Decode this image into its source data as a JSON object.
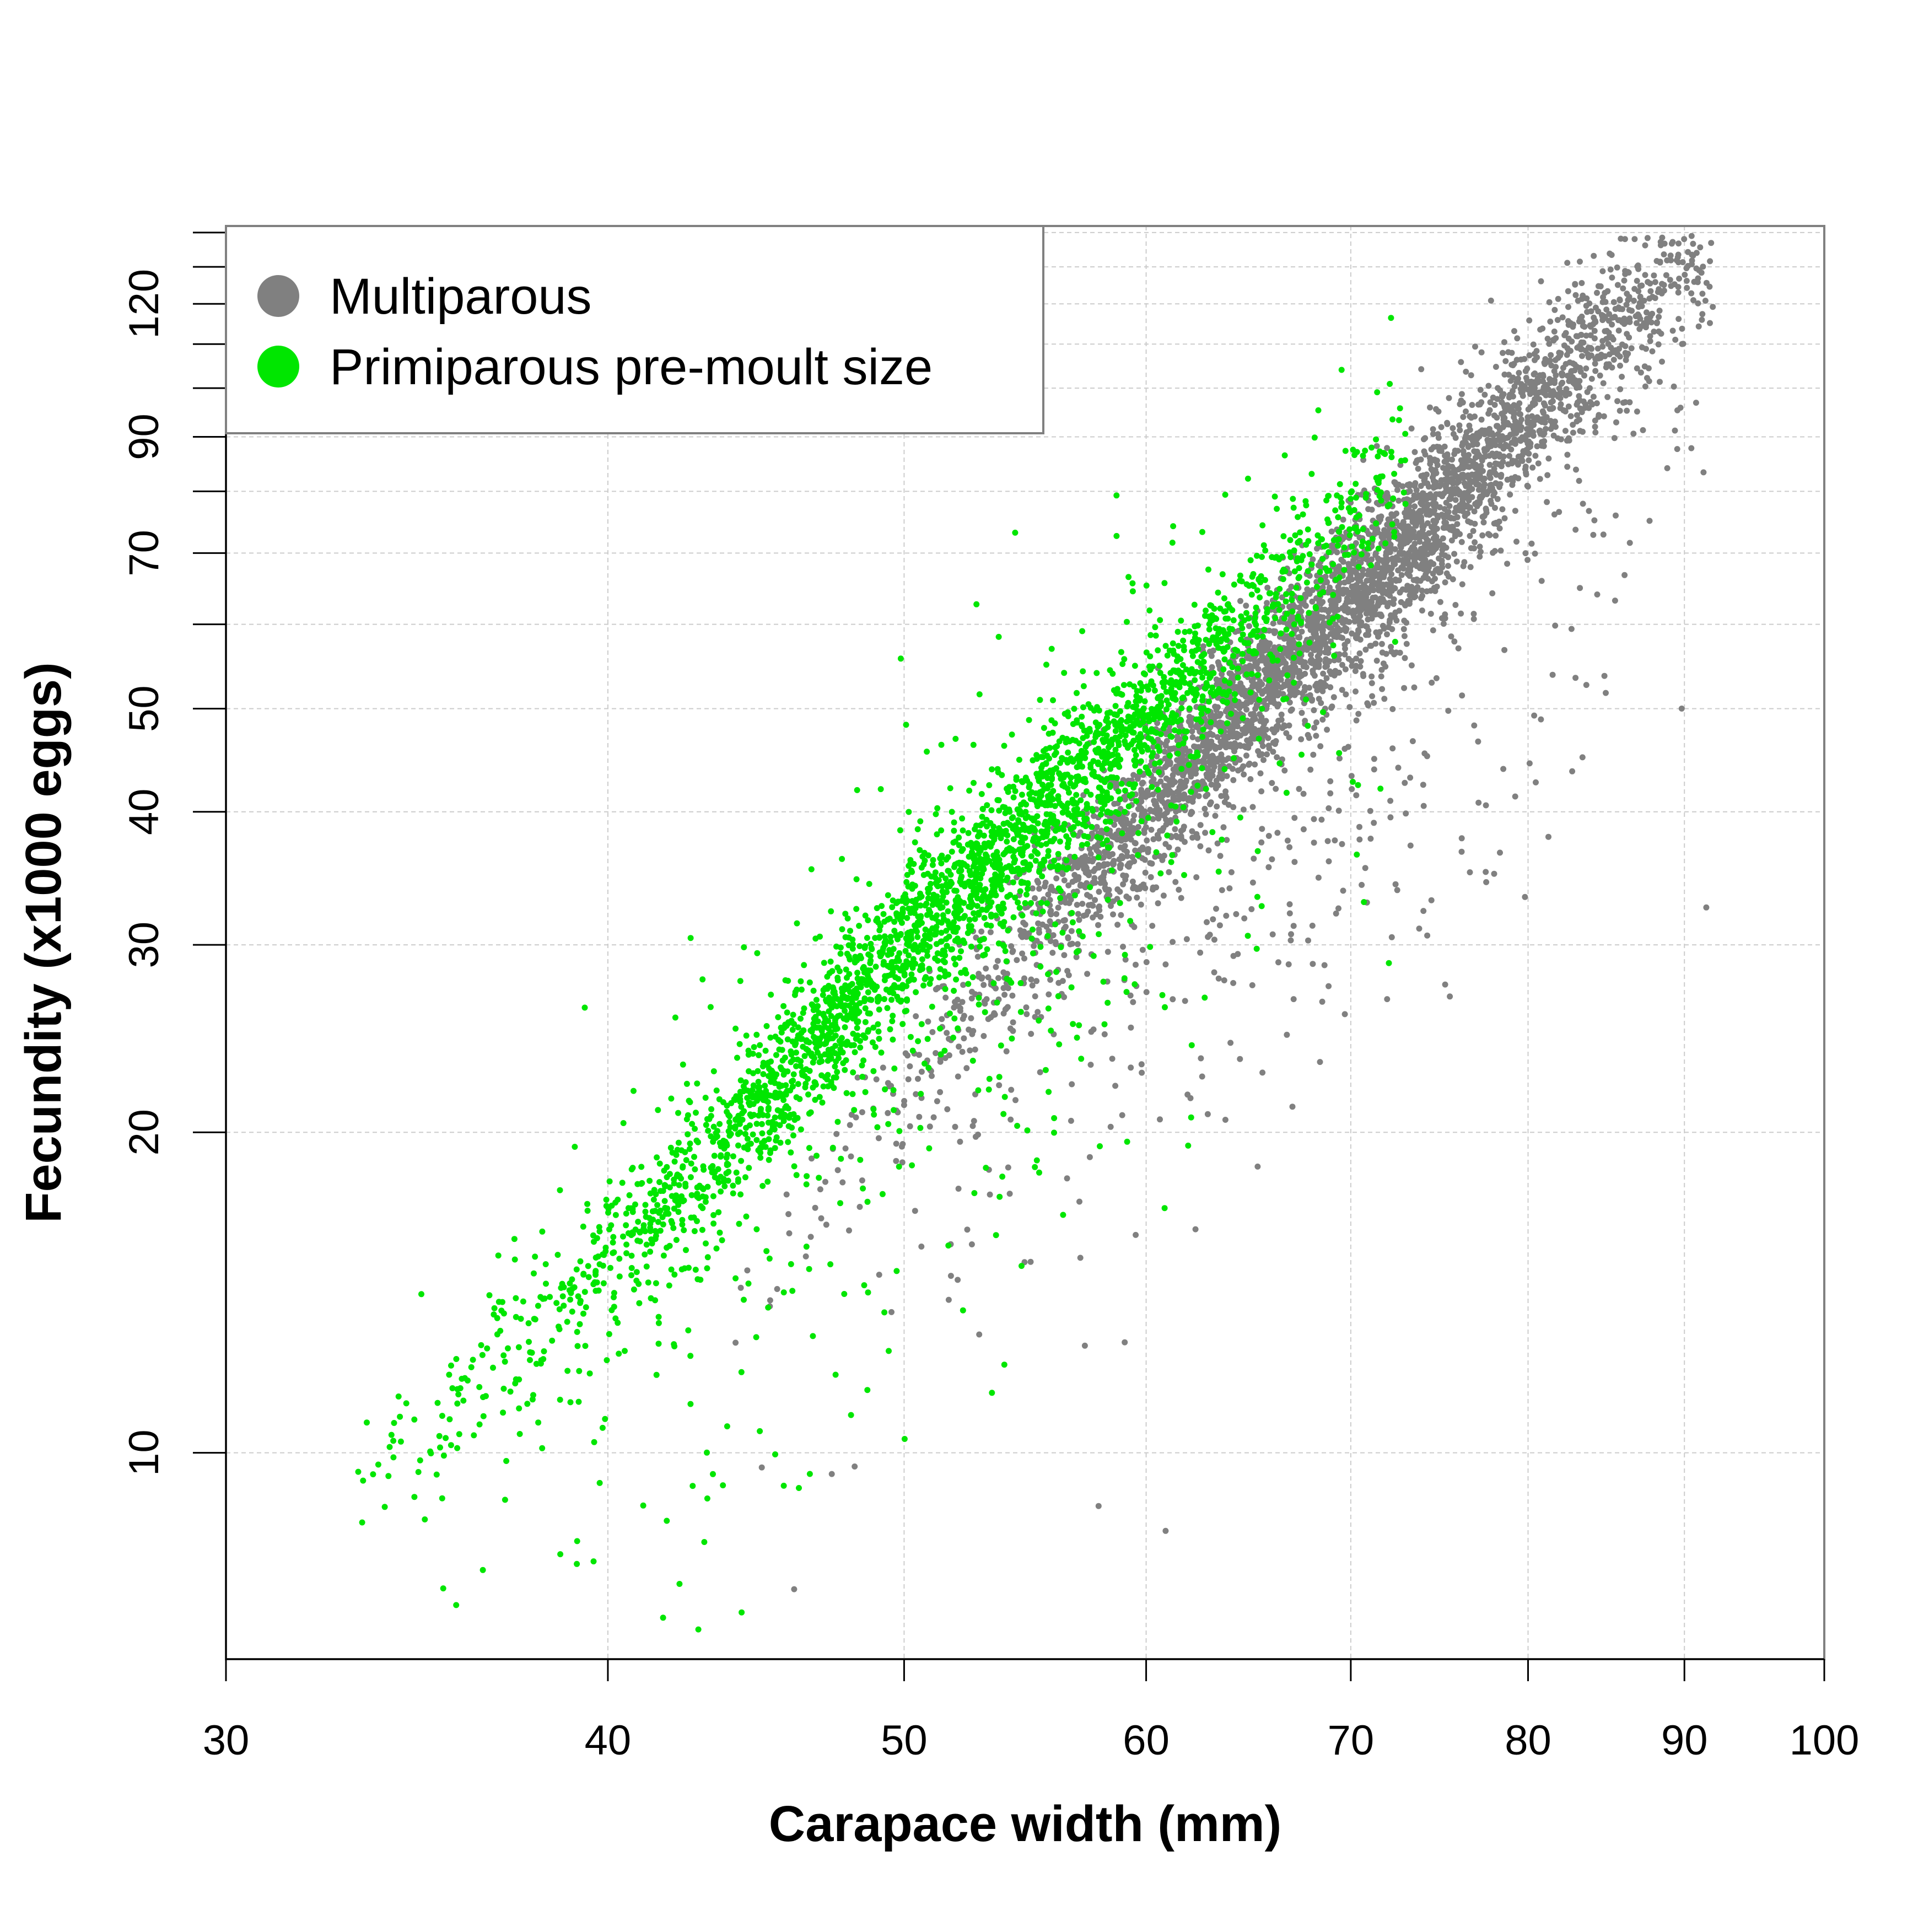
{
  "chart_data": {
    "type": "scatter",
    "title": "",
    "xlabel": "Carapace width (mm)",
    "ylabel": "Fecundity (x1000 eggs)",
    "xscale": "log",
    "yscale": "log",
    "xlim": [
      30,
      100
    ],
    "ylim": [
      6.4,
      142
    ],
    "grid": true,
    "legend": {
      "position": "top-left",
      "entries": [
        {
          "label": "Multiparous",
          "color": "#808080"
        },
        {
          "label": "Primiparous pre-moult size",
          "color": "#00E600"
        }
      ]
    },
    "x_ticks": [
      {
        "value": 30,
        "label": "30"
      },
      {
        "value": 40,
        "label": "40"
      },
      {
        "value": 50,
        "label": "50"
      },
      {
        "value": 60,
        "label": "60"
      },
      {
        "value": 70,
        "label": "70"
      },
      {
        "value": 80,
        "label": "80"
      },
      {
        "value": 90,
        "label": "90"
      },
      {
        "value": 100,
        "label": "100"
      }
    ],
    "y_ticks_labeled": [
      {
        "value": 10,
        "label": "10"
      },
      {
        "value": 20,
        "label": "20"
      },
      {
        "value": 30,
        "label": "30"
      },
      {
        "value": 40,
        "label": "40"
      },
      {
        "value": 50,
        "label": "50"
      },
      {
        "value": 70,
        "label": "70"
      },
      {
        "value": 90,
        "label": "90"
      },
      {
        "value": 120,
        "label": "120"
      }
    ],
    "y_ticks_minor": [
      60,
      80,
      100,
      110,
      130,
      140
    ],
    "series": [
      {
        "name": "Multiparous",
        "color": "#808080",
        "n_points": 4200,
        "trend": {
          "x": [
            45,
            55,
            65,
            75,
            85,
            91
          ],
          "y": [
            15,
            31,
            52,
            78,
            115,
            130
          ]
        },
        "x_range": [
          44,
          92
        ],
        "seed": 7
      },
      {
        "name": "Primiparous pre-moult size",
        "color": "#00E600",
        "n_points": 3200,
        "trend": {
          "x": [
            33,
            40,
            50,
            60,
            68,
            72
          ],
          "y": [
            9,
            15,
            30,
            49,
            68,
            82
          ]
        },
        "x_range": [
          33,
          73
        ],
        "seed": 13
      }
    ]
  }
}
